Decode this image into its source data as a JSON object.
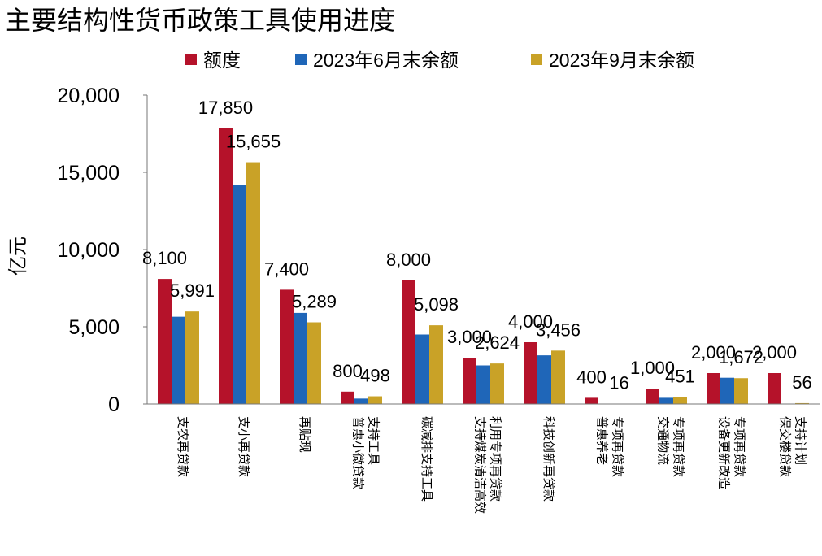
{
  "chart_data": {
    "type": "bar",
    "title": "主要结构性货币政策工具使用进度",
    "ylabel": "亿元",
    "xlabel": "",
    "ylim": [
      0,
      20000
    ],
    "yticks": [
      "0",
      "5,000",
      "10,000",
      "15,000",
      "20,000"
    ],
    "ytick_values": [
      0,
      5000,
      10000,
      15000,
      20000
    ],
    "legend_position": "top",
    "categories": [
      [
        "支农再贷款"
      ],
      [
        "支小再贷款"
      ],
      [
        "再贴现"
      ],
      [
        "普惠小微贷款",
        "支持工具"
      ],
      [
        "碳减排支持工具"
      ],
      [
        "支持煤炭清洁高效",
        "利用专项再贷款"
      ],
      [
        "科技创新再贷款"
      ],
      [
        "普惠养老",
        "专项再贷款"
      ],
      [
        "交通物流",
        "专项再贷款"
      ],
      [
        "设备更新改造",
        "专项再贷款"
      ],
      [
        "保交楼贷款",
        "支持计划"
      ]
    ],
    "series": [
      {
        "name": "额度",
        "color": "#B5122A",
        "values": [
          8100,
          17850,
          7400,
          800,
          8000,
          3000,
          4000,
          400,
          1000,
          2000,
          2000
        ],
        "labels": [
          "8,100",
          "17,850",
          "7,400",
          "800",
          "8,000",
          "3,000",
          "4,000",
          "400",
          "1,000",
          "2,000",
          "2,000"
        ]
      },
      {
        "name": "2023年6月末余额",
        "color": "#1F66B8",
        "values": [
          5650,
          14200,
          5900,
          350,
          4500,
          2500,
          3150,
          0,
          400,
          1700,
          0
        ],
        "labels": [
          "",
          "",
          "",
          "",
          "",
          "",
          "",
          "",
          "",
          "",
          ""
        ]
      },
      {
        "name": "2023年9月末余额",
        "color": "#C9A227",
        "values": [
          5991,
          15655,
          5289,
          498,
          5098,
          2624,
          3456,
          16,
          451,
          1672,
          56
        ],
        "labels": [
          "5,991",
          "15,655",
          "5,289",
          "498",
          "5,098",
          "2,624",
          "3,456",
          "16",
          "451",
          "1,672",
          "56"
        ]
      }
    ]
  }
}
